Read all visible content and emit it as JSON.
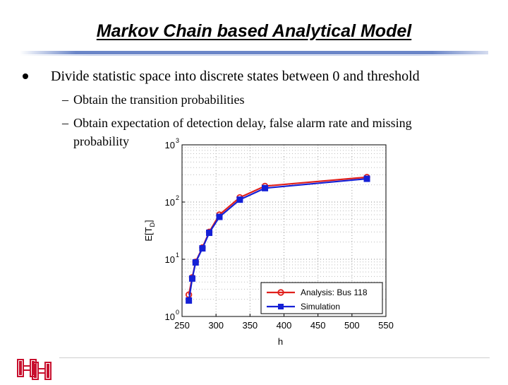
{
  "slide": {
    "title": "Markov Chain based Analytical Model",
    "bullet": "Divide statistic space into discrete states between 0 and threshold",
    "sub_bullets": [
      {
        "dash": "–",
        "text": "Obtain the transition probabilities"
      },
      {
        "dash": "–",
        "text": "Obtain expectation of detection delay, false alarm rate and missing",
        "cont": "probability"
      }
    ]
  },
  "colors": {
    "title_rule": "#6b86c8",
    "analysis": "#e0201c",
    "simulation": "#1520d6",
    "logo": "#c8102e"
  },
  "chart_data": {
    "type": "line",
    "xlabel": "h",
    "ylabel": "E[T",
    "ylabel_sub": "D",
    "ylabel_close": "]",
    "xlim": [
      250,
      550
    ],
    "ylim": [
      1,
      1000
    ],
    "yscale": "log",
    "grid": true,
    "xticks": [
      "250",
      "300",
      "350",
      "400",
      "450",
      "500",
      "550"
    ],
    "yticks": [
      {
        "base": "10",
        "exp": "0"
      },
      {
        "base": "10",
        "exp": "1"
      },
      {
        "base": "10",
        "exp": "2"
      },
      {
        "base": "10",
        "exp": "3"
      }
    ],
    "legend_position": "bottom-right",
    "series": [
      {
        "name": "Analysis: Bus 118",
        "marker": "circle",
        "x": [
          260,
          265,
          270,
          280,
          290,
          305,
          335,
          372,
          522
        ],
        "y": [
          2.4,
          4.8,
          9,
          16,
          30,
          60,
          120,
          190,
          272
        ]
      },
      {
        "name": "Simulation",
        "marker": "square",
        "x": [
          260,
          265,
          270,
          280,
          290,
          305,
          335,
          372,
          522
        ],
        "y": [
          1.9,
          4.6,
          8.8,
          15.5,
          29,
          55,
          110,
          175,
          255
        ]
      }
    ]
  }
}
